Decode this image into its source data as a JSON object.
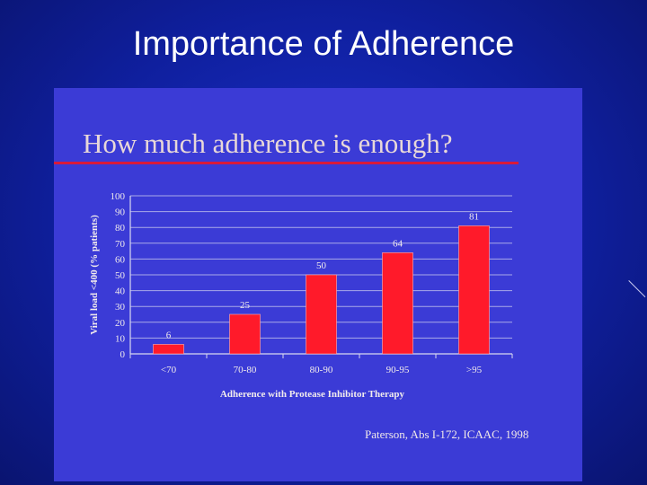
{
  "slide": {
    "title": "Importance of Adherence"
  },
  "panel": {
    "title": "How much adherence is enough?",
    "citation": "Paterson, Abs I-172, ICAAC, 1998"
  },
  "chart_data": {
    "type": "bar",
    "categories": [
      "<70",
      "70-80",
      "80-90",
      "90-95",
      ">95"
    ],
    "values": [
      6,
      25,
      50,
      64,
      81
    ],
    "data_labels": [
      "6",
      "25",
      "50",
      "64",
      "81"
    ],
    "xlabel": "Adherence with Protease Inhibitor Therapy",
    "ylabel": "Viral load <400 (% patients)",
    "ylim": [
      0,
      100
    ],
    "yticks": [
      0,
      10,
      20,
      30,
      40,
      50,
      60,
      70,
      80,
      90,
      100
    ],
    "grid": true,
    "legend": "none",
    "colors": {
      "bar": "#ff1a2a",
      "axis": "#d8d8f0",
      "text": "#f2ecec"
    }
  }
}
